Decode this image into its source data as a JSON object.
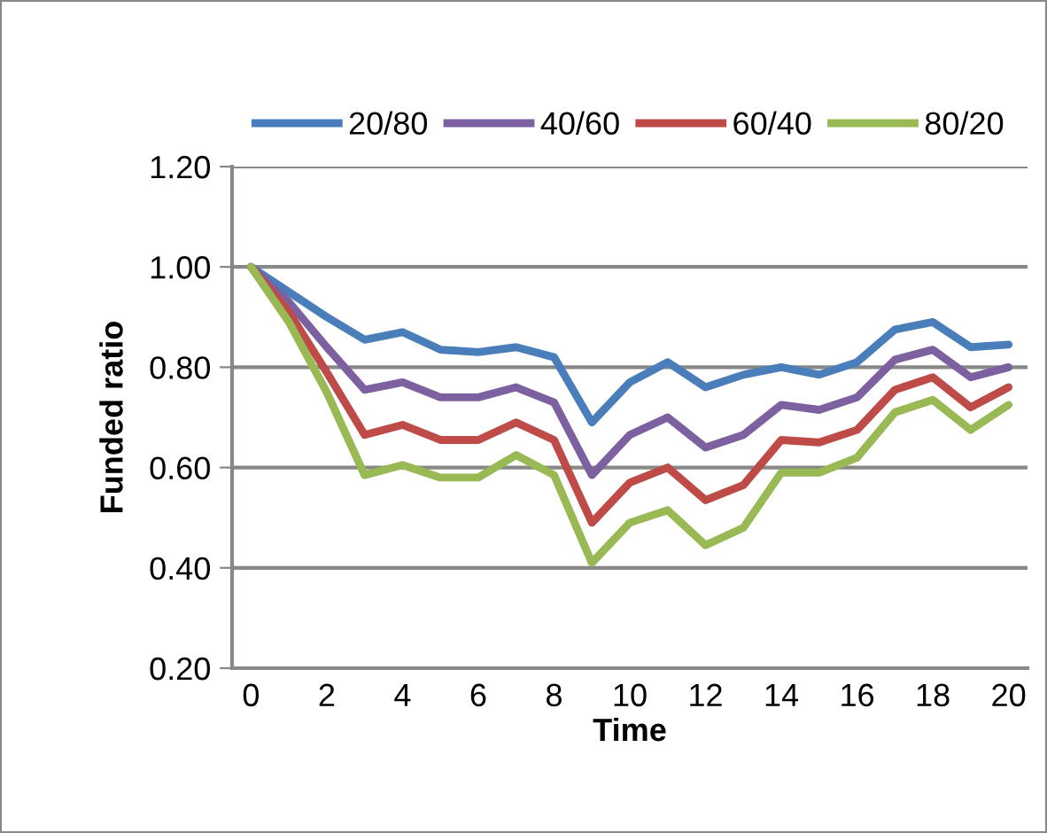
{
  "chart_data": {
    "type": "line",
    "xlabel": "Time",
    "ylabel": "Funded ratio",
    "categories": [
      "0",
      null,
      "2",
      null,
      "4",
      null,
      "6",
      null,
      "8",
      null,
      "10",
      null,
      "12",
      null,
      "14",
      null,
      "16",
      null,
      "18",
      null,
      "20"
    ],
    "series": [
      {
        "name": "20/80",
        "color": "#4a7ebb",
        "values": [
          1.0,
          0.95,
          0.9,
          0.855,
          0.87,
          0.835,
          0.83,
          0.84,
          0.82,
          0.69,
          0.77,
          0.81,
          0.76,
          0.785,
          0.8,
          0.785,
          0.81,
          0.875,
          0.89,
          0.84,
          0.845
        ]
      },
      {
        "name": "40/60",
        "color": "#7d60a0",
        "values": [
          1.0,
          0.93,
          0.84,
          0.755,
          0.77,
          0.74,
          0.74,
          0.76,
          0.73,
          0.585,
          0.665,
          0.7,
          0.64,
          0.665,
          0.725,
          0.715,
          0.74,
          0.815,
          0.835,
          0.78,
          0.8
        ]
      },
      {
        "name": "60/40",
        "color": "#be4b48",
        "values": [
          1.0,
          0.91,
          0.79,
          0.665,
          0.685,
          0.655,
          0.655,
          0.69,
          0.655,
          0.49,
          0.57,
          0.6,
          0.535,
          0.565,
          0.655,
          0.65,
          0.675,
          0.755,
          0.78,
          0.72,
          0.76
        ]
      },
      {
        "name": "80/20",
        "color": "#98b954",
        "values": [
          1.0,
          0.89,
          0.75,
          0.585,
          0.605,
          0.58,
          0.58,
          0.625,
          0.585,
          0.41,
          0.49,
          0.515,
          0.445,
          0.48,
          0.59,
          0.59,
          0.62,
          0.71,
          0.735,
          0.675,
          0.725
        ]
      }
    ],
    "ylim": [
      0.2,
      1.2
    ],
    "yticks": [
      {
        "value": 0.2,
        "label": "0.20"
      },
      {
        "value": 0.4,
        "label": "0.40"
      },
      {
        "value": 0.6,
        "label": "0.60"
      },
      {
        "value": 0.8,
        "label": "0.80"
      },
      {
        "value": 1.0,
        "label": "1.00"
      },
      {
        "value": 1.2,
        "label": "1.20"
      }
    ],
    "grid": "y",
    "legend": "top",
    "marker": "none",
    "line_style": "solid"
  }
}
